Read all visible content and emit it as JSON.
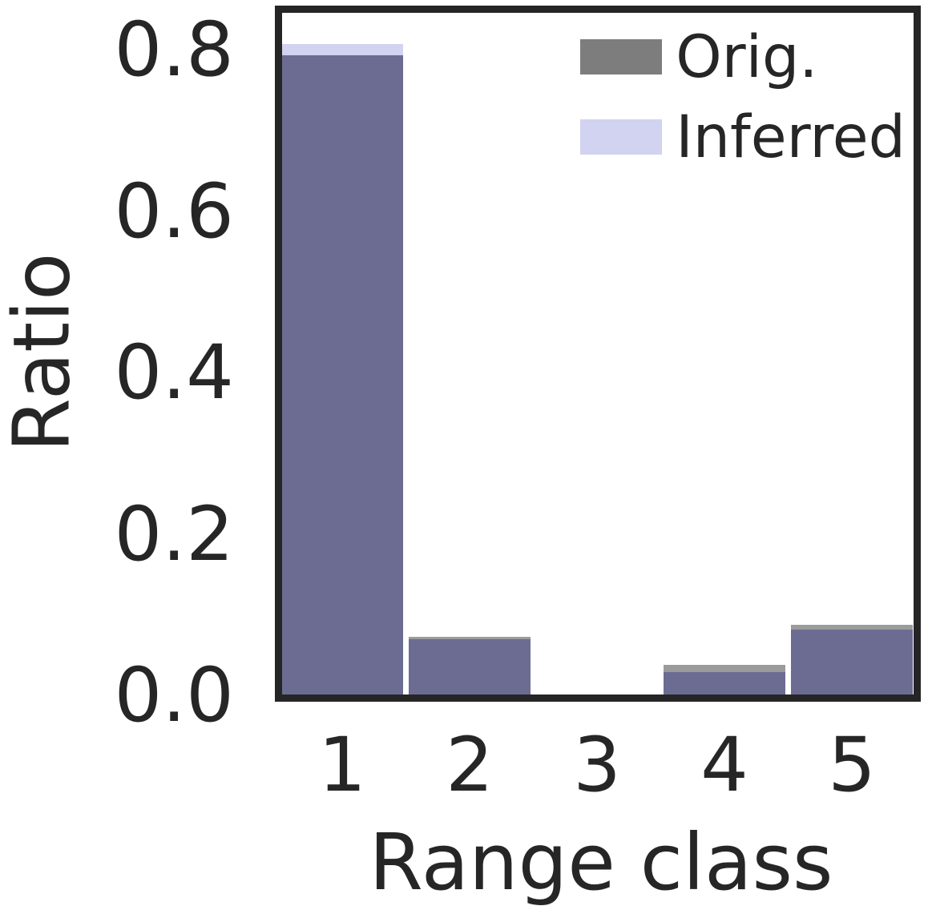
{
  "chart_data": {
    "type": "bar",
    "title": "",
    "xlabel": "Range class",
    "ylabel": "Ratio",
    "categories": [
      "1",
      "2",
      "3",
      "4",
      "5"
    ],
    "series": [
      {
        "name": "Orig.",
        "values": [
          0.792,
          0.071,
          0.0,
          0.037,
          0.086
        ]
      },
      {
        "name": "Inferred",
        "values": [
          0.806,
          0.069,
          0.0,
          0.028,
          0.08
        ]
      }
    ],
    "ylim": [
      0,
      0.845
    ],
    "yticks": [
      {
        "value": 0.0,
        "label": "0.0"
      },
      {
        "value": 0.2,
        "label": "0.2"
      },
      {
        "value": 0.4,
        "label": "0.4"
      },
      {
        "value": 0.6,
        "label": "0.6"
      },
      {
        "value": 0.8,
        "label": "0.8"
      }
    ],
    "grid": false,
    "bar_style": "overlaid-translucent",
    "legend_position": "upper right",
    "colors": {
      "orig_legend": "#7d7d7d",
      "orig_bar_visible": "#9b9b9b",
      "inferred_bar": "#d2d2f1",
      "overlap": "#6c6c92",
      "axis": "#252525",
      "text": "#262626"
    }
  },
  "legend": {
    "items": [
      {
        "label": "Orig.",
        "color": "#7d7d7d"
      },
      {
        "label": "Inferred",
        "color": "#d2d2f1"
      }
    ]
  }
}
